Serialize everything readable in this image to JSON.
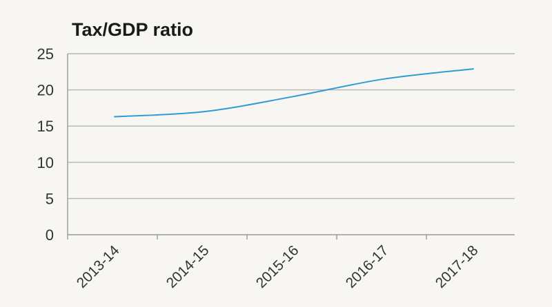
{
  "chart_data": {
    "type": "line",
    "title": "Tax/GDP ratio",
    "xlabel": "",
    "ylabel": "",
    "categories": [
      "2013-14",
      "2014-15",
      "2015-16",
      "2016-17",
      "2017-18"
    ],
    "series": [
      {
        "values": [
          16.3,
          17.0,
          19.1,
          21.5,
          22.9
        ]
      }
    ],
    "y_ticks": [
      0,
      5,
      10,
      15,
      20,
      25
    ],
    "ylim": [
      0,
      25
    ],
    "grid": true,
    "legend": "none",
    "colors": {
      "line": "#2f9bd6",
      "grid": "#b5b5b5",
      "axis": "#9a9a9a",
      "text": "#333333",
      "background": "#f8f6f2"
    }
  }
}
